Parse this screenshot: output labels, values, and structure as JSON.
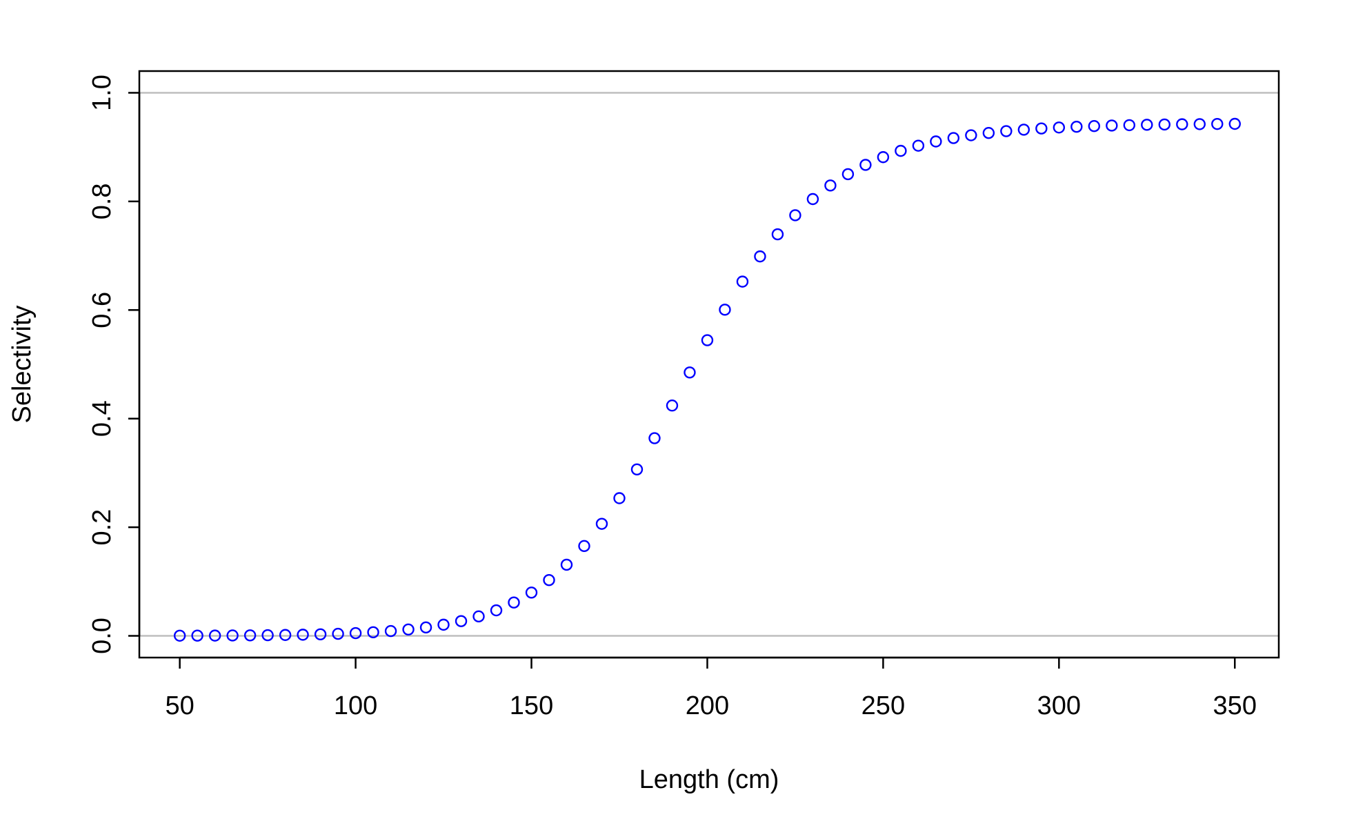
{
  "chart_data": {
    "type": "scatter",
    "title": "",
    "xlabel": "Length (cm)",
    "ylabel": "Selectivity",
    "xlim": [
      38.5,
      362.5
    ],
    "ylim": [
      -0.04,
      1.04
    ],
    "x_ticks": [
      50,
      100,
      150,
      200,
      250,
      300,
      350
    ],
    "y_ticks": [
      0.0,
      0.2,
      0.4,
      0.6,
      0.8,
      1.0
    ],
    "x_tick_labels": [
      "50",
      "100",
      "150",
      "200",
      "250",
      "300",
      "350"
    ],
    "y_tick_labels": [
      "0.0",
      "0.2",
      "0.4",
      "0.6",
      "0.8",
      "1.0"
    ],
    "reference_lines_y": [
      0,
      1
    ],
    "grid": false,
    "legend": "none",
    "marker": "open-circle",
    "colors": {
      "points": "#0000ff",
      "reference_lines": "#bebebe",
      "axes": "#000000"
    },
    "series": [
      {
        "x": [
          50,
          55,
          60,
          65,
          70,
          75,
          80,
          85,
          90,
          95,
          100,
          105,
          110,
          115,
          120,
          125,
          130,
          135,
          140,
          145,
          150,
          155,
          160,
          165,
          170,
          175,
          180,
          185,
          190,
          195,
          200,
          205,
          210,
          215,
          220,
          225,
          230,
          235,
          240,
          245,
          250,
          255,
          260,
          265,
          270,
          275,
          280,
          285,
          290,
          295,
          300,
          305,
          310,
          315,
          320,
          325,
          330,
          335,
          340,
          345,
          350
        ],
        "y": [
          0.0003,
          0.0004,
          0.0005,
          0.0007,
          0.0009,
          0.0012,
          0.0016,
          0.0021,
          0.0028,
          0.0037,
          0.005,
          0.0066,
          0.0088,
          0.0117,
          0.0155,
          0.0205,
          0.0271,
          0.0358,
          0.047,
          0.0614,
          0.0797,
          0.1027,
          0.131,
          0.1654,
          0.2063,
          0.2535,
          0.3065,
          0.364,
          0.4241,
          0.485,
          0.5444,
          0.6006,
          0.6523,
          0.6987,
          0.7394,
          0.7745,
          0.8043,
          0.8293,
          0.8501,
          0.8673,
          0.8815,
          0.8931,
          0.9026,
          0.9104,
          0.9167,
          0.9218,
          0.926,
          0.9294,
          0.9321,
          0.9343,
          0.9361,
          0.9375,
          0.9387,
          0.9397,
          0.9404,
          0.9411,
          0.9416,
          0.942,
          0.9423,
          0.9426,
          0.9428
        ]
      }
    ]
  }
}
